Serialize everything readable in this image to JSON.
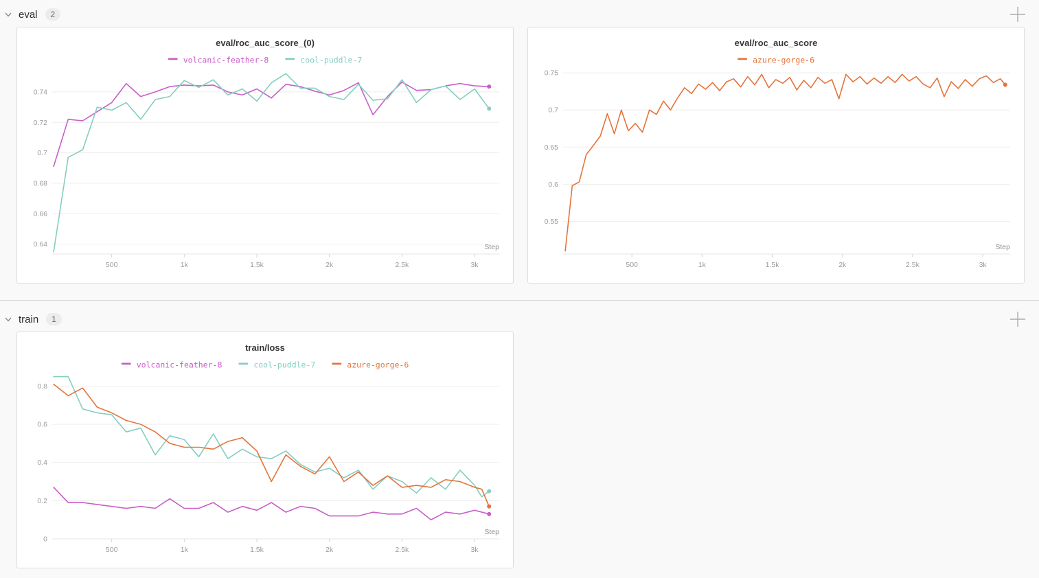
{
  "sections": [
    {
      "name": "eval",
      "count": "2",
      "panel_chart_indexes": [
        0,
        1
      ]
    },
    {
      "name": "train",
      "count": "1",
      "panel_chart_indexes": [
        2
      ]
    }
  ],
  "icons": {
    "section_collapse": "chevron-down",
    "add_panel": "plus"
  },
  "colors": {
    "volcanic_feather_8": "#C85EC8",
    "cool_puddle_7": "#84CEC0",
    "azure_gorge_6": "#E4743A",
    "grid": "#ededed",
    "axis": "#e4e4e4",
    "tick": "#d4d4d4"
  },
  "chart_data": [
    {
      "type": "line",
      "title": "eval/roc_auc_score_(0)",
      "xlabel": "Step",
      "legend_position": "top",
      "grid": "horizontal",
      "xlim": [
        90,
        3170
      ],
      "ylim": [
        0.6335,
        0.7535
      ],
      "xtick_values": [
        500,
        1000,
        1500,
        2000,
        2500,
        3000
      ],
      "xtick_labels": [
        "500",
        "1k",
        "1.5k",
        "2k",
        "2.5k",
        "3k"
      ],
      "ygrid_values": [
        0.64,
        0.66,
        0.68,
        0.7,
        0.72,
        0.74
      ],
      "ygrid_labels": [
        "0.64",
        "0.66",
        "0.68",
        "0.7",
        "0.72",
        "0.74"
      ],
      "series": [
        {
          "name": "volcanic-feather-8",
          "color": "#C85EC8",
          "end_dot": true,
          "points": [
            [
              100,
              0.691
            ],
            [
              200,
              0.722
            ],
            [
              300,
              0.721
            ],
            [
              400,
              0.727
            ],
            [
              500,
              0.733
            ],
            [
              600,
              0.7455
            ],
            [
              700,
              0.737
            ],
            [
              800,
              0.74
            ],
            [
              900,
              0.7435
            ],
            [
              1000,
              0.7445
            ],
            [
              1100,
              0.744
            ],
            [
              1200,
              0.7445
            ],
            [
              1300,
              0.74
            ],
            [
              1400,
              0.738
            ],
            [
              1500,
              0.742
            ],
            [
              1600,
              0.736
            ],
            [
              1700,
              0.745
            ],
            [
              1800,
              0.7435
            ],
            [
              1900,
              0.7405
            ],
            [
              2000,
              0.738
            ],
            [
              2100,
              0.741
            ],
            [
              2200,
              0.746
            ],
            [
              2300,
              0.725
            ],
            [
              2400,
              0.737
            ],
            [
              2500,
              0.7465
            ],
            [
              2600,
              0.741
            ],
            [
              2700,
              0.7415
            ],
            [
              2800,
              0.744
            ],
            [
              2900,
              0.7455
            ],
            [
              3000,
              0.744
            ],
            [
              3100,
              0.7435
            ]
          ]
        },
        {
          "name": "cool-puddle-7",
          "color": "#84CEC0",
          "end_dot": true,
          "points": [
            [
              100,
              0.635
            ],
            [
              200,
              0.697
            ],
            [
              300,
              0.702
            ],
            [
              400,
              0.73
            ],
            [
              500,
              0.728
            ],
            [
              600,
              0.733
            ],
            [
              700,
              0.722
            ],
            [
              800,
              0.735
            ],
            [
              900,
              0.737
            ],
            [
              1000,
              0.7475
            ],
            [
              1100,
              0.743
            ],
            [
              1200,
              0.748
            ],
            [
              1300,
              0.738
            ],
            [
              1400,
              0.742
            ],
            [
              1500,
              0.734
            ],
            [
              1600,
              0.746
            ],
            [
              1700,
              0.752
            ],
            [
              1800,
              0.7425
            ],
            [
              1900,
              0.7425
            ],
            [
              2000,
              0.737
            ],
            [
              2100,
              0.735
            ],
            [
              2200,
              0.745
            ],
            [
              2300,
              0.7345
            ],
            [
              2400,
              0.7355
            ],
            [
              2500,
              0.748
            ],
            [
              2600,
              0.733
            ],
            [
              2700,
              0.7415
            ],
            [
              2800,
              0.744
            ],
            [
              2900,
              0.735
            ],
            [
              3000,
              0.742
            ],
            [
              3100,
              0.729
            ]
          ]
        }
      ]
    },
    {
      "type": "line",
      "title": "eval/roc_auc_score",
      "xlabel": "Step",
      "legend_position": "top",
      "grid": "horizontal",
      "xlim": [
        10,
        3195
      ],
      "ylim": [
        0.506,
        0.752
      ],
      "xtick_values": [
        500,
        1000,
        1500,
        2000,
        2500,
        3000
      ],
      "xtick_labels": [
        "500",
        "1k",
        "1.5k",
        "2k",
        "2.5k",
        "3k"
      ],
      "ygrid_values": [
        0.55,
        0.6,
        0.65,
        0.7,
        0.75
      ],
      "ygrid_labels": [
        "0.55",
        "0.6",
        "0.65",
        "0.7",
        "0.75"
      ],
      "series": [
        {
          "name": "azure-gorge-6",
          "color": "#E4743A",
          "end_dot": true,
          "points": [
            [
              25,
              0.51
            ],
            [
              75,
              0.598
            ],
            [
              125,
              0.603
            ],
            [
              175,
              0.64
            ],
            [
              225,
              0.652
            ],
            [
              275,
              0.665
            ],
            [
              325,
              0.695
            ],
            [
              375,
              0.668
            ],
            [
              425,
              0.7
            ],
            [
              475,
              0.672
            ],
            [
              525,
              0.682
            ],
            [
              575,
              0.67
            ],
            [
              625,
              0.7
            ],
            [
              675,
              0.694
            ],
            [
              725,
              0.712
            ],
            [
              775,
              0.7
            ],
            [
              825,
              0.716
            ],
            [
              875,
              0.73
            ],
            [
              925,
              0.722
            ],
            [
              975,
              0.735
            ],
            [
              1025,
              0.728
            ],
            [
              1075,
              0.737
            ],
            [
              1125,
              0.726
            ],
            [
              1175,
              0.738
            ],
            [
              1225,
              0.742
            ],
            [
              1275,
              0.731
            ],
            [
              1325,
              0.745
            ],
            [
              1375,
              0.734
            ],
            [
              1425,
              0.748
            ],
            [
              1475,
              0.73
            ],
            [
              1525,
              0.741
            ],
            [
              1575,
              0.736
            ],
            [
              1625,
              0.744
            ],
            [
              1675,
              0.727
            ],
            [
              1725,
              0.74
            ],
            [
              1775,
              0.73
            ],
            [
              1825,
              0.744
            ],
            [
              1875,
              0.736
            ],
            [
              1925,
              0.741
            ],
            [
              1975,
              0.715
            ],
            [
              2025,
              0.748
            ],
            [
              2075,
              0.738
            ],
            [
              2125,
              0.745
            ],
            [
              2175,
              0.735
            ],
            [
              2225,
              0.743
            ],
            [
              2275,
              0.736
            ],
            [
              2325,
              0.745
            ],
            [
              2375,
              0.737
            ],
            [
              2425,
              0.748
            ],
            [
              2475,
              0.739
            ],
            [
              2525,
              0.745
            ],
            [
              2575,
              0.735
            ],
            [
              2625,
              0.73
            ],
            [
              2675,
              0.743
            ],
            [
              2725,
              0.718
            ],
            [
              2775,
              0.738
            ],
            [
              2825,
              0.729
            ],
            [
              2875,
              0.741
            ],
            [
              2925,
              0.732
            ],
            [
              2975,
              0.742
            ],
            [
              3025,
              0.746
            ],
            [
              3075,
              0.737
            ],
            [
              3125,
              0.742
            ],
            [
              3160,
              0.734
            ]
          ]
        }
      ]
    },
    {
      "type": "line",
      "title": "train/loss",
      "xlabel": "Step",
      "legend_position": "top",
      "grid": "horizontal",
      "xlim": [
        90,
        3170
      ],
      "ylim": [
        0,
        0.852
      ],
      "xtick_values": [
        500,
        1000,
        1500,
        2000,
        2500,
        3000
      ],
      "xtick_labels": [
        "500",
        "1k",
        "1.5k",
        "2k",
        "2.5k",
        "3k"
      ],
      "ygrid_values": [
        0,
        0.2,
        0.4,
        0.6,
        0.8
      ],
      "ygrid_labels": [
        "0",
        "0.2",
        "0.4",
        "0.6",
        "0.8"
      ],
      "series": [
        {
          "name": "volcanic-feather-8",
          "color": "#C85EC8",
          "end_dot": true,
          "points": [
            [
              100,
              0.27
            ],
            [
              200,
              0.19
            ],
            [
              300,
              0.19
            ],
            [
              400,
              0.18
            ],
            [
              500,
              0.17
            ],
            [
              600,
              0.16
            ],
            [
              700,
              0.17
            ],
            [
              800,
              0.16
            ],
            [
              900,
              0.21
            ],
            [
              1000,
              0.16
            ],
            [
              1100,
              0.16
            ],
            [
              1200,
              0.19
            ],
            [
              1300,
              0.14
            ],
            [
              1400,
              0.17
            ],
            [
              1500,
              0.15
            ],
            [
              1600,
              0.19
            ],
            [
              1700,
              0.14
            ],
            [
              1800,
              0.17
            ],
            [
              1900,
              0.16
            ],
            [
              2000,
              0.12
            ],
            [
              2100,
              0.12
            ],
            [
              2200,
              0.12
            ],
            [
              2300,
              0.14
            ],
            [
              2400,
              0.13
            ],
            [
              2500,
              0.13
            ],
            [
              2600,
              0.16
            ],
            [
              2700,
              0.1
            ],
            [
              2800,
              0.14
            ],
            [
              2900,
              0.13
            ],
            [
              3000,
              0.15
            ],
            [
              3100,
              0.13
            ]
          ]
        },
        {
          "name": "cool-puddle-7",
          "color": "#84CEC0",
          "end_dot": true,
          "points": [
            [
              100,
              0.85
            ],
            [
              200,
              0.85
            ],
            [
              300,
              0.68
            ],
            [
              400,
              0.66
            ],
            [
              500,
              0.65
            ],
            [
              600,
              0.56
            ],
            [
              700,
              0.58
            ],
            [
              800,
              0.44
            ],
            [
              900,
              0.54
            ],
            [
              1000,
              0.52
            ],
            [
              1100,
              0.43
            ],
            [
              1200,
              0.55
            ],
            [
              1300,
              0.42
            ],
            [
              1400,
              0.47
            ],
            [
              1500,
              0.43
            ],
            [
              1600,
              0.42
            ],
            [
              1700,
              0.46
            ],
            [
              1800,
              0.39
            ],
            [
              1900,
              0.35
            ],
            [
              2000,
              0.37
            ],
            [
              2100,
              0.32
            ],
            [
              2200,
              0.36
            ],
            [
              2300,
              0.26
            ],
            [
              2400,
              0.33
            ],
            [
              2500,
              0.3
            ],
            [
              2600,
              0.24
            ],
            [
              2700,
              0.32
            ],
            [
              2800,
              0.26
            ],
            [
              2900,
              0.36
            ],
            [
              3000,
              0.28
            ],
            [
              3050,
              0.22
            ],
            [
              3100,
              0.25
            ]
          ]
        },
        {
          "name": "azure-gorge-6",
          "color": "#E4743A",
          "end_dot": true,
          "points": [
            [
              100,
              0.81
            ],
            [
              200,
              0.75
            ],
            [
              300,
              0.79
            ],
            [
              400,
              0.69
            ],
            [
              500,
              0.66
            ],
            [
              600,
              0.62
            ],
            [
              700,
              0.6
            ],
            [
              800,
              0.56
            ],
            [
              900,
              0.5
            ],
            [
              1000,
              0.48
            ],
            [
              1100,
              0.48
            ],
            [
              1200,
              0.47
            ],
            [
              1300,
              0.51
            ],
            [
              1400,
              0.53
            ],
            [
              1500,
              0.46
            ],
            [
              1600,
              0.3
            ],
            [
              1700,
              0.44
            ],
            [
              1800,
              0.38
            ],
            [
              1900,
              0.34
            ],
            [
              2000,
              0.43
            ],
            [
              2100,
              0.3
            ],
            [
              2200,
              0.35
            ],
            [
              2300,
              0.28
            ],
            [
              2400,
              0.33
            ],
            [
              2500,
              0.27
            ],
            [
              2600,
              0.28
            ],
            [
              2700,
              0.27
            ],
            [
              2800,
              0.31
            ],
            [
              2900,
              0.3
            ],
            [
              3000,
              0.27
            ],
            [
              3050,
              0.26
            ],
            [
              3100,
              0.17
            ]
          ]
        }
      ]
    }
  ]
}
